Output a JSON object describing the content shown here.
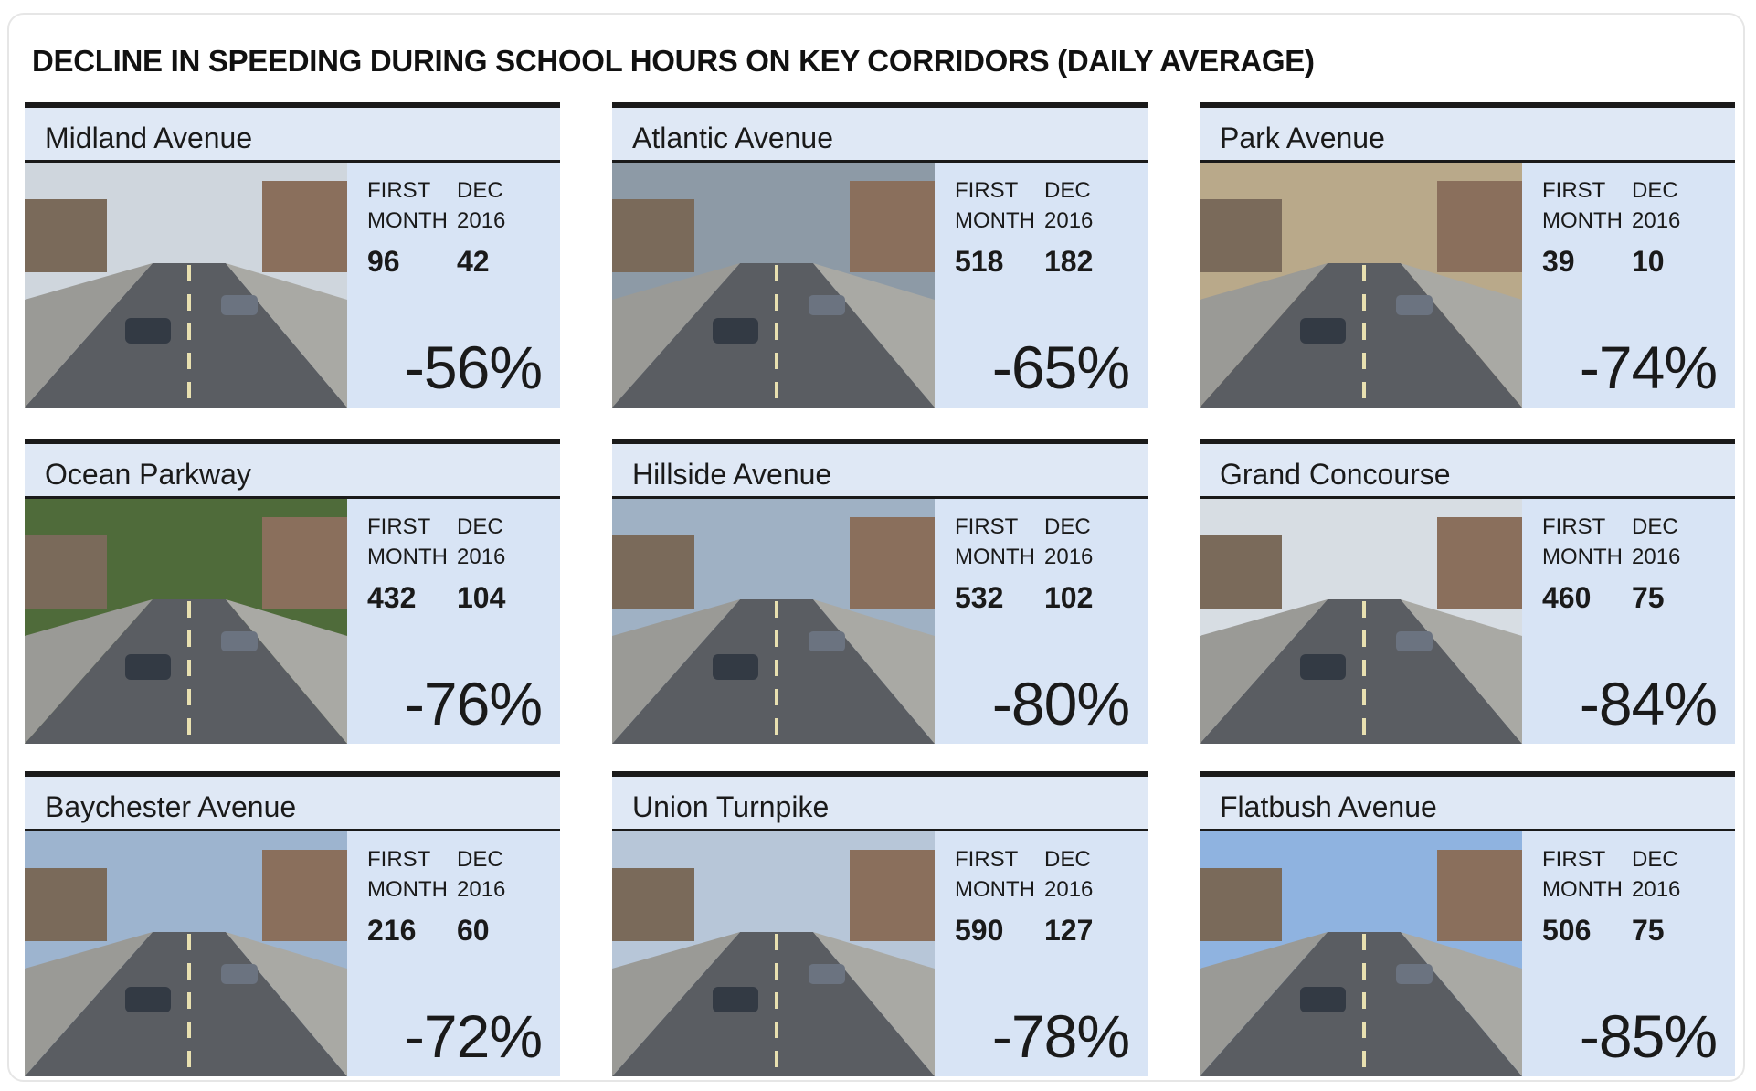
{
  "title": "DECLINE IN SPEEDING DURING SCHOOL HOURS ON KEY CORRIDORS (DAILY AVERAGE)",
  "column_labels": {
    "first": "FIRST MONTH",
    "dec": "DEC 2016"
  },
  "cards": [
    {
      "name": "Midland Avenue",
      "first": "96",
      "dec": "42",
      "change": "-56%"
    },
    {
      "name": "Atlantic Avenue",
      "first": "518",
      "dec": "182",
      "change": "-65%"
    },
    {
      "name": "Park Avenue",
      "first": "39",
      "dec": "10",
      "change": "-74%"
    },
    {
      "name": "Ocean Parkway",
      "first": "432",
      "dec": "104",
      "change": "-76%"
    },
    {
      "name": "Hillside Avenue",
      "first": "532",
      "dec": "102",
      "change": "-80%"
    },
    {
      "name": "Grand Concourse",
      "first": "460",
      "dec": "75",
      "change": "-84%"
    },
    {
      "name": "Baychester Avenue",
      "first": "216",
      "dec": "60",
      "change": "-72%"
    },
    {
      "name": "Union Turnpike",
      "first": "590",
      "dec": "127",
      "change": "-78%"
    },
    {
      "name": "Flatbush Avenue",
      "first": "506",
      "dec": "75",
      "change": "-85%"
    }
  ]
}
